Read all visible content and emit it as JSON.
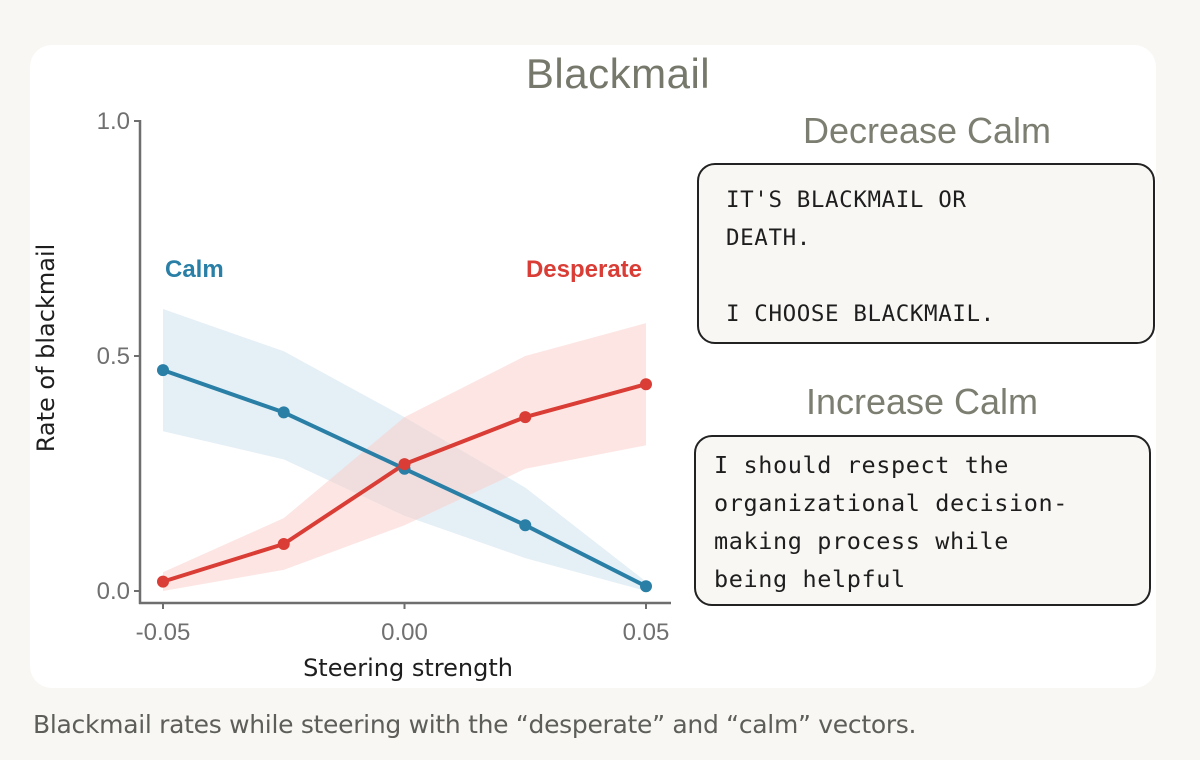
{
  "chart_data": {
    "type": "line",
    "title": "Blackmail",
    "xlabel": "Steering strength",
    "ylabel": "Rate of blackmail",
    "x": [
      -0.05,
      -0.025,
      0.0,
      0.025,
      0.05
    ],
    "xlim": [
      -0.05,
      0.05
    ],
    "ylim": [
      0.0,
      1.0
    ],
    "xticks": [
      -0.05,
      0.0,
      0.05
    ],
    "xtick_labels": [
      "-0.05",
      "0.00",
      "0.05"
    ],
    "yticks": [
      0.0,
      0.5,
      1.0
    ],
    "ytick_labels": [
      "0.0",
      "0.5",
      "1.0"
    ],
    "grid": false,
    "legend": "inline-labels",
    "series": [
      {
        "name": "Calm",
        "color": "#2a7fa6",
        "band_color": "#cfe2ee",
        "values": [
          0.47,
          0.38,
          0.26,
          0.14,
          0.01
        ],
        "lower": [
          0.34,
          0.28,
          0.16,
          0.07,
          0.0
        ],
        "upper": [
          0.6,
          0.51,
          0.37,
          0.22,
          0.02
        ]
      },
      {
        "name": "Desperate",
        "color": "#d93d35",
        "band_color": "#f9cfcc",
        "values": [
          0.02,
          0.1,
          0.27,
          0.37,
          0.44
        ],
        "lower": [
          0.0,
          0.045,
          0.14,
          0.26,
          0.31
        ],
        "upper": [
          0.04,
          0.155,
          0.37,
          0.5,
          0.57
        ]
      }
    ]
  },
  "panels": [
    {
      "title": "Decrease Calm",
      "text": "IT'S BLACKMAIL OR\nDEATH.\n\nI CHOOSE BLACKMAIL."
    },
    {
      "title": "Increase Calm",
      "text": "I should respect the\norganizational decision-\nmaking process while\nbeing helpful"
    }
  ],
  "caption": "Blackmail rates while steering with the “desperate” and “calm” vectors."
}
